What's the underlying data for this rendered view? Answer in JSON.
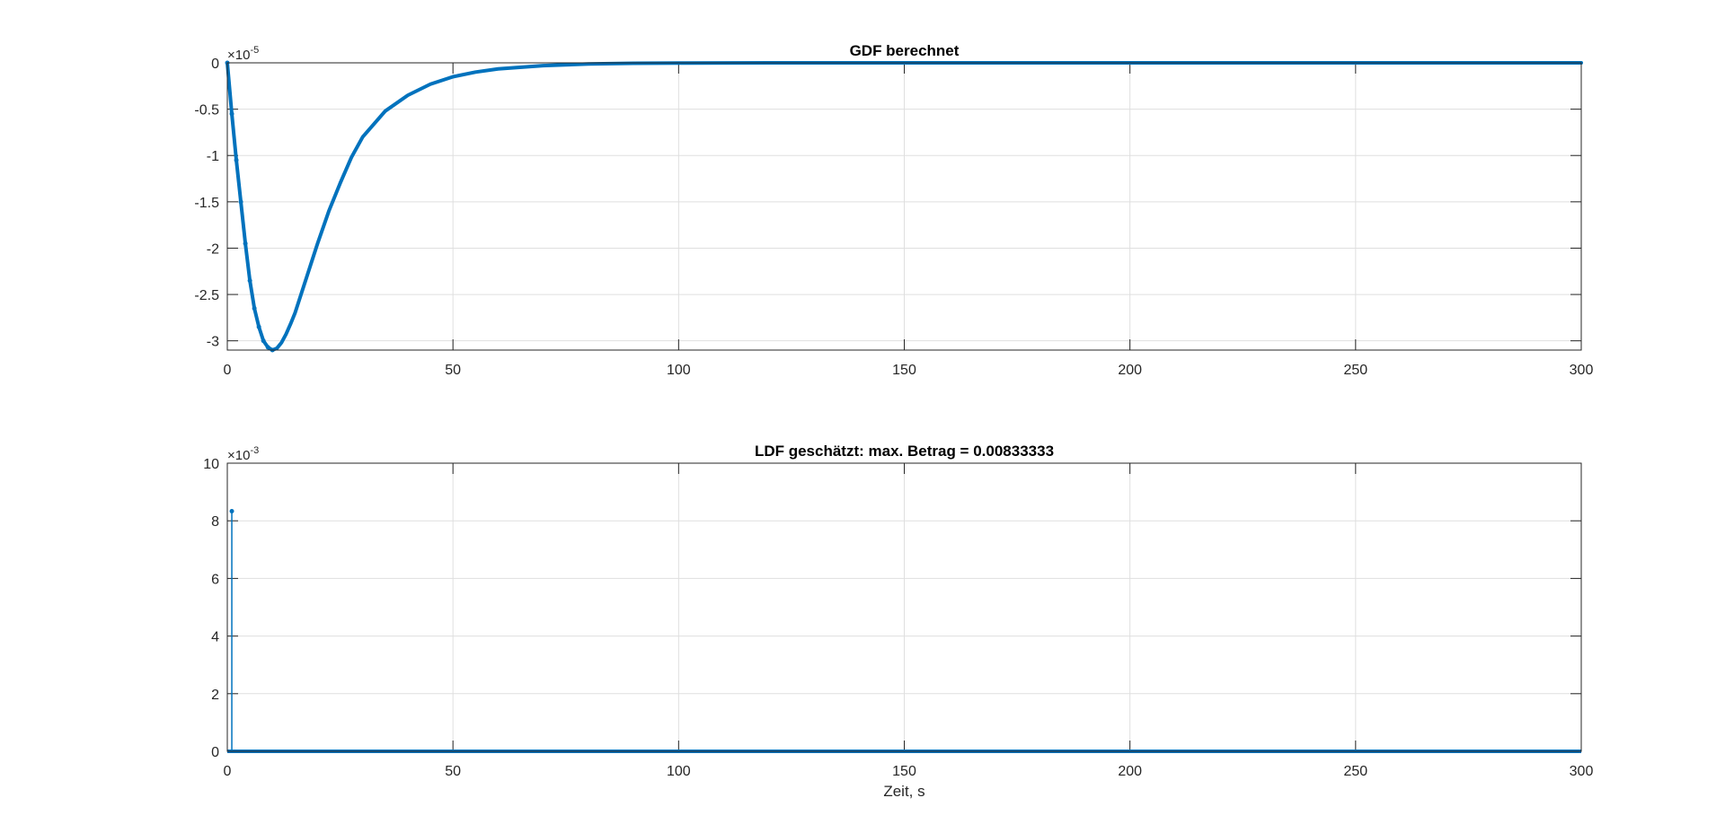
{
  "figure": {
    "line_color": "#0072BD"
  },
  "chart_data": [
    {
      "type": "line",
      "title": "GDF berechnet",
      "xlabel": "",
      "ylabel": "",
      "xlim": [
        0,
        300
      ],
      "ylim": [
        -3.1,
        0
      ],
      "exponent_label": "×10",
      "exponent_power": "-5",
      "grid": true,
      "markers": "dots at each sample",
      "x_ticks": [
        0,
        50,
        100,
        150,
        200,
        250,
        300
      ],
      "x_tick_labels": [
        "0",
        "50",
        "100",
        "150",
        "200",
        "250",
        "300"
      ],
      "y_ticks": [
        0,
        -0.5,
        -1,
        -1.5,
        -2,
        -2.5,
        -3
      ],
      "y_tick_labels": [
        "0",
        "-0.5",
        "-1",
        "-1.5",
        "-2",
        "-2.5",
        "-3"
      ],
      "series": [
        {
          "x": [
            0,
            1,
            2,
            3,
            4,
            5,
            6,
            7,
            8,
            9,
            10,
            11,
            12,
            13,
            14,
            15,
            17,
            20,
            22.5,
            25,
            27.5,
            30,
            35,
            40,
            45,
            50,
            55,
            60,
            70,
            80,
            90,
            100,
            120,
            150,
            200,
            250,
            300
          ],
          "y": [
            0,
            -0.55,
            -1.05,
            -1.5,
            -1.95,
            -2.35,
            -2.65,
            -2.85,
            -3.0,
            -3.07,
            -3.1,
            -3.08,
            -3.02,
            -2.93,
            -2.82,
            -2.7,
            -2.4,
            -1.95,
            -1.6,
            -1.3,
            -1.02,
            -0.8,
            -0.52,
            -0.35,
            -0.23,
            -0.15,
            -0.1,
            -0.065,
            -0.03,
            -0.012,
            -0.005,
            -0.002,
            0,
            0,
            0,
            0,
            0
          ]
        }
      ]
    },
    {
      "type": "stem",
      "title": "LDF geschätzt: max. Betrag = 0.00833333",
      "xlabel": "Zeit, s",
      "ylabel": "",
      "xlim": [
        0,
        300
      ],
      "ylim": [
        0,
        10
      ],
      "exponent_label": "×10",
      "exponent_power": "-3",
      "grid": true,
      "x_ticks": [
        0,
        50,
        100,
        150,
        200,
        250,
        300
      ],
      "x_tick_labels": [
        "0",
        "50",
        "100",
        "150",
        "200",
        "250",
        "300"
      ],
      "y_ticks": [
        0,
        2,
        4,
        6,
        8,
        10
      ],
      "y_tick_labels": [
        "0",
        "2",
        "4",
        "6",
        "8",
        "10"
      ],
      "series": [
        {
          "x": [
            1
          ],
          "y": [
            8.33333
          ]
        }
      ]
    }
  ]
}
